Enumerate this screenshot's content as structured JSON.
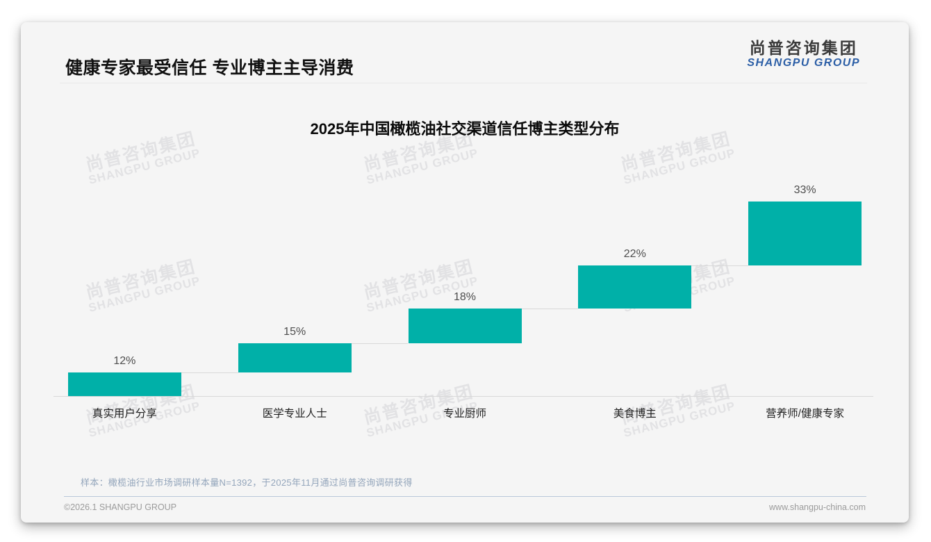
{
  "page": {
    "header": {
      "title": "健康专家最受信任 专业博主主导消费"
    },
    "logo": {
      "cn": "尚普咨询集团",
      "en": "SHANGPU GROUP"
    },
    "watermark": {
      "cn": "尚普咨询集团",
      "en": "SHANGPU GROUP"
    },
    "footer": {
      "sample_note": "样本：橄榄油行业市场调研样本量N=1392，于2025年11月通过尚普咨询调研获得",
      "copyright": "©2026.1 SHANGPU GROUP",
      "website": "www.shangpu-china.com"
    }
  },
  "chart_data": {
    "type": "bar",
    "subtype": "waterfall-staircase",
    "title": "2025年中国橄榄油社交渠道信任博主类型分布",
    "categories": [
      "真实用户分享",
      "医学专业人士",
      "专业厨师",
      "美食博主",
      "营养师/健康专家"
    ],
    "values": [
      12,
      15,
      18,
      22,
      33
    ],
    "value_labels": [
      "12%",
      "15%",
      "18%",
      "22%",
      "33%"
    ],
    "cumulative": [
      12,
      27,
      45,
      67,
      100
    ],
    "unit": "%",
    "ylim": [
      0,
      100
    ],
    "bar_color": "#00b0a8",
    "grid": false,
    "legend": false,
    "xlabel": "",
    "ylabel": ""
  },
  "colors": {
    "accent_teal": "#00b0a8",
    "logo_blue": "#2b5ea6",
    "card_background": "#f5f5f5",
    "watermark": "#e2e2e4",
    "axis_line": "#d8d8d8",
    "note_text": "#93a5bb",
    "footer_text": "#9b9b9b",
    "footer_divider": "#b9c7da"
  }
}
